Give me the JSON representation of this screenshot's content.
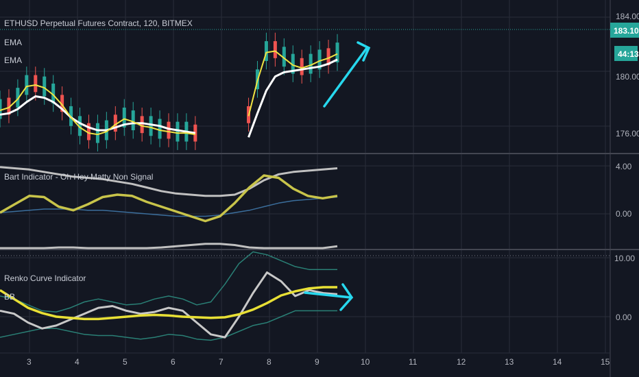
{
  "colors": {
    "background": "#131722",
    "grid": "#2a2e39",
    "separator": "#434651",
    "up": "#26a69a",
    "down": "#ef5350",
    "ema_fast": "#f0e442",
    "ema_slow": "#ffffff",
    "bart": "#c8c44a",
    "band": "#c0c0c0",
    "blue": "#3b6e9c",
    "renko": "#e8e035",
    "bb": "#2a8076",
    "renko_gray": "#c8c8c8",
    "arrow": "#27d8ee",
    "price_badge": "#26a69a"
  },
  "header": {
    "title": "ETHUSD Perpetual Futures Contract, 120, BITMEX",
    "ema1": "EMA",
    "ema2": "EMA"
  },
  "price_badge": "183.10",
  "time_badge": "44:13",
  "pane2_title": "Bart Indicator - Oh Hey Matty Non Signal",
  "pane3_title": "Renko Curve Indicator",
  "pane3_sub": "BB",
  "chart_data": [
    {
      "type": "candlestick",
      "title": "ETHUSD Perpetual Futures Contract, 120, BITMEX",
      "y_ticks": [
        "184.00",
        "180.00",
        "176.00"
      ],
      "current_price": 183.1,
      "x_ticks": [
        "3",
        "4",
        "5",
        "6",
        "7",
        "8",
        "9",
        "10",
        "11",
        "12",
        "13",
        "14",
        "15"
      ],
      "ema_fast": [
        177.4,
        177.6,
        178.2,
        179.1,
        179.2,
        179.0,
        178.5,
        177.8,
        176.9,
        176.2,
        175.8,
        175.7,
        175.9,
        176.4,
        176.8,
        176.6,
        176.3,
        176.2,
        176.0,
        175.9,
        175.8,
        175.8,
        175.7,
        null,
        null,
        null,
        null,
        null,
        177.0,
        179.5,
        181.5,
        181.6,
        181.1,
        180.6,
        180.4,
        180.6,
        180.9,
        181.1,
        181.4
      ],
      "ema_slow": [
        177.1,
        177.2,
        177.5,
        178.0,
        178.4,
        178.3,
        178.0,
        177.5,
        176.9,
        176.5,
        176.2,
        176.0,
        176.0,
        176.2,
        176.4,
        176.5,
        176.5,
        176.4,
        176.3,
        176.1,
        176.0,
        175.9,
        175.8,
        null,
        null,
        null,
        null,
        null,
        175.5,
        177.2,
        178.8,
        179.8,
        180.1,
        180.2,
        180.3,
        180.4,
        180.5,
        180.7,
        181.0
      ]
    },
    {
      "type": "line",
      "title": "Bart Indicator - Oh Hey Matty Non Signal",
      "y_ticks": [
        "4.00",
        "0.00"
      ],
      "series": [
        {
          "values": [
            0.1,
            0.8,
            1.5,
            1.4,
            0.6,
            0.3,
            0.8,
            1.4,
            1.6,
            1.5,
            1.0,
            0.6,
            0.2,
            -0.2,
            -0.6,
            -0.2,
            0.9,
            2.2,
            3.2,
            3.0,
            2.1,
            1.5,
            1.3,
            1.5
          ]
        },
        {
          "values": [
            -3.1,
            -3.0,
            -2.9,
            -2.9,
            -2.8,
            -2.8,
            -2.9,
            -3.0,
            -3.0,
            -3.0,
            -2.9,
            -2.8,
            -2.7,
            -2.6,
            -2.5,
            -2.5,
            -2.6,
            -2.8,
            -3.0,
            -3.1,
            -3.1,
            -3.1,
            -2.9,
            -2.7
          ]
        },
        {
          "values": [
            3.9,
            3.8,
            3.7,
            3.5,
            3.3,
            3.1,
            3.0,
            2.9,
            2.7,
            2.5,
            2.2,
            1.9,
            1.7,
            1.6,
            1.5,
            1.5,
            1.6,
            2.1,
            2.8,
            3.3,
            3.5,
            3.6,
            3.7,
            3.8
          ]
        },
        {
          "values": [
            0.1,
            0.2,
            0.3,
            0.4,
            0.4,
            0.4,
            0.3,
            0.3,
            0.2,
            0.1,
            0.0,
            -0.1,
            -0.2,
            -0.2,
            -0.2,
            -0.1,
            0.1,
            0.3,
            0.6,
            0.9,
            1.1,
            1.2,
            1.3,
            1.4
          ]
        }
      ]
    },
    {
      "type": "line",
      "title": "Renko Curve Indicator",
      "y_ticks": [
        "10.00",
        "0.00"
      ],
      "series": [
        {
          "values": [
            4.5,
            3.0,
            1.5,
            0.6,
            0.0,
            -0.2,
            -0.4,
            -0.4,
            -0.2,
            0.0,
            0.2,
            0.3,
            0.2,
            0.0,
            -0.1,
            -0.2,
            -0.1,
            0.4,
            1.2,
            2.3,
            3.6,
            4.3,
            4.8,
            5.0,
            5.0
          ]
        },
        {
          "values": [
            1.0,
            0.5,
            -1.0,
            -2.0,
            -1.5,
            -0.5,
            0.5,
            1.5,
            1.8,
            1.0,
            0.5,
            0.8,
            1.5,
            1.0,
            -1.0,
            -3.0,
            -3.5,
            0.0,
            4.0,
            7.5,
            6.0,
            3.5,
            4.5,
            4.0,
            3.8
          ]
        },
        {
          "values": [
            3.5,
            3.0,
            2.0,
            1.0,
            0.8,
            1.5,
            2.5,
            3.0,
            2.5,
            2.0,
            2.2,
            3.0,
            3.5,
            3.0,
            2.0,
            2.5,
            5.5,
            9.0,
            11.0,
            10.5,
            9.5,
            8.5,
            8.0,
            8.0,
            8.0
          ]
        },
        {
          "values": [
            -3.5,
            -3.0,
            -2.5,
            -2.0,
            -2.0,
            -2.5,
            -3.0,
            -3.2,
            -3.2,
            -3.5,
            -3.8,
            -3.5,
            -3.0,
            -3.2,
            -3.8,
            -4.0,
            -3.5,
            -2.5,
            -1.5,
            -1.0,
            0.0,
            1.0,
            1.0,
            1.0,
            1.0
          ]
        }
      ]
    }
  ]
}
